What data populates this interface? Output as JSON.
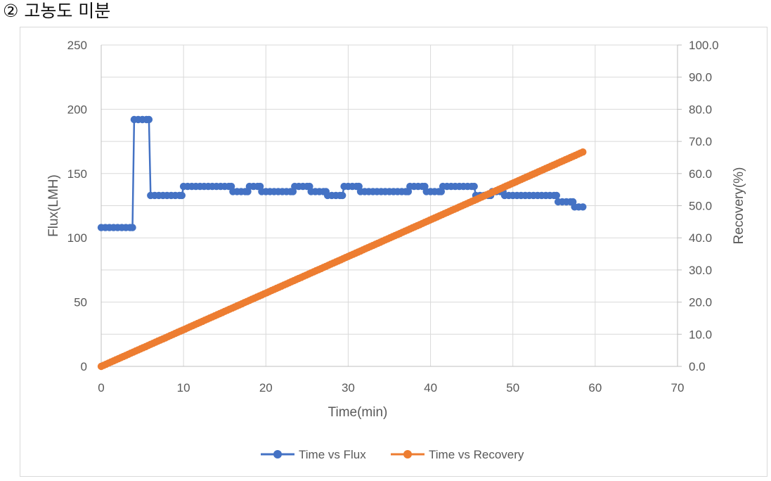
{
  "heading": "② 고농도 미분",
  "colors": {
    "flux": "#4472C4",
    "recovery": "#ED7D31",
    "grid": "#d9d9d9",
    "text": "#595959"
  },
  "chart_data": {
    "type": "scatter",
    "title": "",
    "xlabel": "Time(min)",
    "ylabel": "Flux(LMH)",
    "y2label": "Recovery(%)",
    "xlim": [
      0,
      70
    ],
    "ylim": [
      0,
      250
    ],
    "y2lim": [
      0,
      100
    ],
    "xticks": [
      "0",
      "10",
      "20",
      "30",
      "40",
      "50",
      "60",
      "70"
    ],
    "yticks": [
      "0",
      "50",
      "100",
      "150",
      "200",
      "250"
    ],
    "y2ticks": [
      "0.0",
      "10.0",
      "20.0",
      "30.0",
      "40.0",
      "50.0",
      "60.0",
      "70.0",
      "80.0",
      "90.0",
      "100.0"
    ],
    "grid": true,
    "legend_position": "bottom",
    "series": [
      {
        "name": "Time vs Flux",
        "axis": "left",
        "color": "#4472C4",
        "points": [
          [
            0,
            108
          ],
          [
            0.5,
            108
          ],
          [
            1,
            108
          ],
          [
            1.5,
            108
          ],
          [
            2,
            108
          ],
          [
            2.5,
            108
          ],
          [
            3,
            108
          ],
          [
            3.5,
            108
          ],
          [
            3.8,
            108
          ],
          [
            4,
            192
          ],
          [
            4.5,
            192
          ],
          [
            5,
            192
          ],
          [
            5.5,
            192
          ],
          [
            5.8,
            192
          ],
          [
            6,
            133
          ],
          [
            6.5,
            133
          ],
          [
            7,
            133
          ],
          [
            7.5,
            133
          ],
          [
            8,
            133
          ],
          [
            8.5,
            133
          ],
          [
            9,
            133
          ],
          [
            9.5,
            133
          ],
          [
            9.8,
            133
          ],
          [
            10,
            140
          ],
          [
            10.5,
            140
          ],
          [
            11,
            140
          ],
          [
            11.5,
            140
          ],
          [
            12,
            140
          ],
          [
            12.5,
            140
          ],
          [
            13,
            140
          ],
          [
            13.5,
            140
          ],
          [
            14,
            140
          ],
          [
            14.5,
            140
          ],
          [
            15,
            140
          ],
          [
            15.5,
            140
          ],
          [
            15.8,
            140
          ],
          [
            16,
            136
          ],
          [
            16.5,
            136
          ],
          [
            17,
            136
          ],
          [
            17.5,
            136
          ],
          [
            17.8,
            136
          ],
          [
            18,
            140
          ],
          [
            18.5,
            140
          ],
          [
            19,
            140
          ],
          [
            19.3,
            140
          ],
          [
            19.5,
            136
          ],
          [
            20,
            136
          ],
          [
            20.5,
            136
          ],
          [
            21,
            136
          ],
          [
            21.5,
            136
          ],
          [
            22,
            136
          ],
          [
            22.5,
            136
          ],
          [
            23,
            136
          ],
          [
            23.3,
            136
          ],
          [
            23.5,
            140
          ],
          [
            24,
            140
          ],
          [
            24.5,
            140
          ],
          [
            25,
            140
          ],
          [
            25.3,
            140
          ],
          [
            25.5,
            136
          ],
          [
            26,
            136
          ],
          [
            26.5,
            136
          ],
          [
            27,
            136
          ],
          [
            27.3,
            136
          ],
          [
            27.5,
            133
          ],
          [
            28,
            133
          ],
          [
            28.5,
            133
          ],
          [
            29,
            133
          ],
          [
            29.3,
            133
          ],
          [
            29.5,
            140
          ],
          [
            30,
            140
          ],
          [
            30.5,
            140
          ],
          [
            31,
            140
          ],
          [
            31.3,
            140
          ],
          [
            31.5,
            136
          ],
          [
            32,
            136
          ],
          [
            32.5,
            136
          ],
          [
            33,
            136
          ],
          [
            33.5,
            136
          ],
          [
            34,
            136
          ],
          [
            34.5,
            136
          ],
          [
            35,
            136
          ],
          [
            35.5,
            136
          ],
          [
            36,
            136
          ],
          [
            36.5,
            136
          ],
          [
            37,
            136
          ],
          [
            37.3,
            136
          ],
          [
            37.5,
            140
          ],
          [
            38,
            140
          ],
          [
            38.5,
            140
          ],
          [
            39,
            140
          ],
          [
            39.3,
            140
          ],
          [
            39.5,
            136
          ],
          [
            40,
            136
          ],
          [
            40.5,
            136
          ],
          [
            41,
            136
          ],
          [
            41.3,
            136
          ],
          [
            41.5,
            140
          ],
          [
            42,
            140
          ],
          [
            42.5,
            140
          ],
          [
            43,
            140
          ],
          [
            43.5,
            140
          ],
          [
            44,
            140
          ],
          [
            44.5,
            140
          ],
          [
            45,
            140
          ],
          [
            45.3,
            140
          ],
          [
            45.5,
            133
          ],
          [
            46,
            133
          ],
          [
            46.5,
            133
          ],
          [
            47,
            133
          ],
          [
            47.3,
            133
          ],
          [
            47.5,
            136
          ],
          [
            48,
            136
          ],
          [
            48.5,
            136
          ],
          [
            48.8,
            136
          ],
          [
            49,
            133
          ],
          [
            49.5,
            133
          ],
          [
            50,
            133
          ],
          [
            50.5,
            133
          ],
          [
            51,
            133
          ],
          [
            51.5,
            133
          ],
          [
            52,
            133
          ],
          [
            52.5,
            133
          ],
          [
            53,
            133
          ],
          [
            53.5,
            133
          ],
          [
            54,
            133
          ],
          [
            54.5,
            133
          ],
          [
            55,
            133
          ],
          [
            55.3,
            133
          ],
          [
            55.5,
            128
          ],
          [
            56,
            128
          ],
          [
            56.5,
            128
          ],
          [
            57,
            128
          ],
          [
            57.3,
            128
          ],
          [
            57.5,
            124
          ],
          [
            58,
            124
          ],
          [
            58.5,
            124
          ]
        ]
      },
      {
        "name": "Time vs Recovery",
        "axis": "right",
        "color": "#ED7D31",
        "x_start": 0,
        "x_end": 58.5,
        "x_step": 0.3,
        "y_start": 0,
        "y_end": 66.7
      }
    ]
  }
}
